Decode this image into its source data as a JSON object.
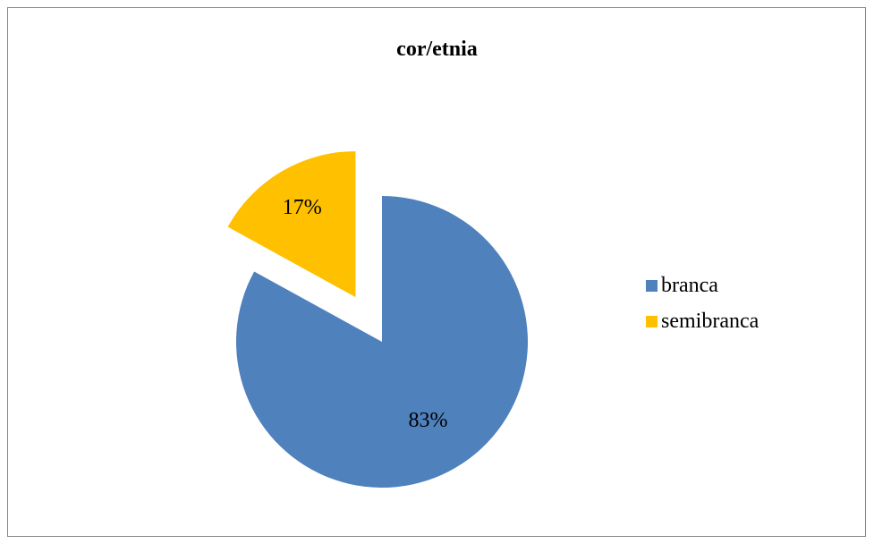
{
  "chart_data": {
    "type": "pie",
    "title": "cor/etnia",
    "slices": [
      {
        "label": "branca",
        "value": 83,
        "value_label": "83%",
        "color": "#4F81BD",
        "exploded": false
      },
      {
        "label": "semibranca",
        "value": 17,
        "value_label": "17%",
        "color": "#FFC000",
        "exploded": true
      }
    ],
    "legend_position": "right"
  }
}
